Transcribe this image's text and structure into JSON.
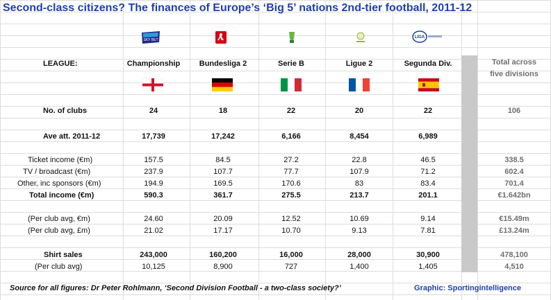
{
  "title": "Second-class citizens? The finances of Europe’s ‘Big 5’ nations 2nd-tier football, 2011-12",
  "header": {
    "row_label": "LEAGUE:",
    "total_line1": "Total across",
    "total_line2": "five divisions"
  },
  "leagues": [
    {
      "name": "Championship",
      "logo": "sky-bet-championship-logo",
      "logo_text": "SKY BET",
      "flag": "england-flag"
    },
    {
      "name": "Bundesliga 2",
      "logo": "bundesliga-logo",
      "logo_text": "",
      "flag": "germany-flag"
    },
    {
      "name": "Serie B",
      "logo": "serie-b-logo",
      "logo_text": "",
      "flag": "italy-flag"
    },
    {
      "name": "Ligue 2",
      "logo": "ligue-2-logo",
      "logo_text": "",
      "flag": "france-flag"
    },
    {
      "name": "Segunda Div.",
      "logo": "liga-adelante-logo",
      "logo_text": "LIGA",
      "flag": "spain-flag"
    }
  ],
  "rows": [
    {
      "id": "clubs",
      "label": "No. of clubs",
      "bold": true,
      "values": [
        "24",
        "18",
        "22",
        "20",
        "22"
      ],
      "total": "106"
    },
    {
      "id": "attendance",
      "label": "Ave att. 2011-12",
      "bold": true,
      "values": [
        "17,739",
        "17,242",
        "6,166",
        "8,454",
        "6,989"
      ],
      "total": ""
    },
    {
      "id": "ticket",
      "label": "Ticket income (€m)",
      "bold": false,
      "values": [
        "157.5",
        "84.5",
        "27.2",
        "22.8",
        "46.5"
      ],
      "total": "338.5"
    },
    {
      "id": "tv",
      "label": "TV / broadcast (€m)",
      "bold": false,
      "values": [
        "237.9",
        "107.7",
        "77.7",
        "107.9",
        "71.2"
      ],
      "total": "602.4"
    },
    {
      "id": "other",
      "label": "Other, inc sponsors (€m)",
      "bold": false,
      "values": [
        "194.9",
        "169.5",
        "170.6",
        "83",
        "83.4"
      ],
      "total": "701.4"
    },
    {
      "id": "total_income",
      "label": "Total income (€m)",
      "bold": true,
      "values": [
        "590.3",
        "361.7",
        "275.5",
        "213.7",
        "201.1"
      ],
      "total": "€1.642bn"
    },
    {
      "id": "per_club_eur",
      "label": "(Per club avg, €m)",
      "bold": false,
      "values": [
        "24.60",
        "20.09",
        "12.52",
        "10.69",
        "9.14"
      ],
      "total": "€15.49m"
    },
    {
      "id": "per_club_gbp",
      "label": "(Per club avg, £m)",
      "bold": false,
      "values": [
        "21.02",
        "17.17",
        "10.70",
        "9.13",
        "7.81"
      ],
      "total": "£13.24m"
    },
    {
      "id": "shirt_sales",
      "label": "Shirt sales",
      "bold": true,
      "values": [
        "243,000",
        "160,200",
        "16,000",
        "28,000",
        "30,900"
      ],
      "total": "478,100"
    },
    {
      "id": "shirt_per_club",
      "label": "(Per club avg)",
      "bold": false,
      "values": [
        "10,125",
        "8,900",
        "727",
        "1,400",
        "1,405"
      ],
      "total": "4,510"
    }
  ],
  "footer": {
    "source": "Source for all figures: Dr Peter Rohlmann, ‘Second Division Football - a two-class society?’",
    "credit": "Graphic: Sportingintelligence"
  },
  "colors": {
    "title": "#1f3fae",
    "separator": "#c9c9c9",
    "total_text": "#6e6e6e"
  }
}
